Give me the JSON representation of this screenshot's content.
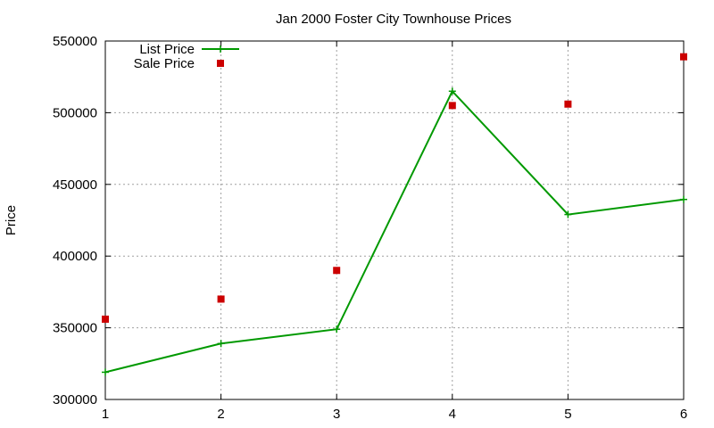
{
  "chart_data": {
    "type": "line",
    "title": "Jan 2000 Foster City Townhouse Prices",
    "xlabel": "",
    "ylabel": "Price",
    "x": [
      1,
      2,
      3,
      4,
      5,
      6
    ],
    "xlim": [
      1,
      6
    ],
    "ylim": [
      300000,
      550000
    ],
    "xticks": [
      "1",
      "2",
      "3",
      "4",
      "5",
      "6"
    ],
    "yticks": [
      "300000",
      "350000",
      "400000",
      "450000",
      "500000",
      "550000"
    ],
    "grid": true,
    "legend_position": "top-left",
    "series": [
      {
        "name": "List Price",
        "style": "linespoints",
        "marker": "plus",
        "color": "#009900",
        "values": [
          319000,
          339000,
          349000,
          515000,
          429000,
          439500
        ]
      },
      {
        "name": "Sale Price",
        "style": "points",
        "marker": "square",
        "color": "#cc0000",
        "values": [
          356000,
          370000,
          390000,
          505000,
          506000,
          539000
        ]
      }
    ]
  }
}
